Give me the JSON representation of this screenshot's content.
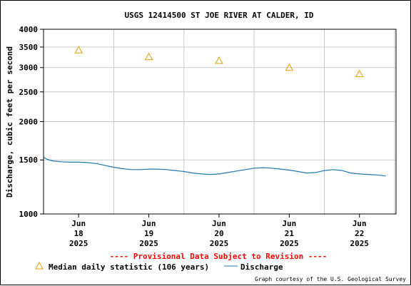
{
  "chart_data": {
    "type": "line",
    "title": "USGS 12414500 ST JOE RIVER AT CALDER, ID",
    "ylabel": "Discharge, cubic feet per second",
    "xlabel": "",
    "y_scale": "log",
    "ylim": [
      1000,
      4000
    ],
    "y_ticks": [
      1000,
      1500,
      2000,
      2500,
      3000,
      3500,
      4000
    ],
    "x_ticks": [
      {
        "value": "2025-06-18",
        "label": [
          "Jun",
          "18",
          "2025"
        ]
      },
      {
        "value": "2025-06-19",
        "label": [
          "Jun",
          "19",
          "2025"
        ]
      },
      {
        "value": "2025-06-20",
        "label": [
          "Jun",
          "20",
          "2025"
        ]
      },
      {
        "value": "2025-06-21",
        "label": [
          "Jun",
          "21",
          "2025"
        ]
      },
      {
        "value": "2025-06-22",
        "label": [
          "Jun",
          "22",
          "2025"
        ]
      }
    ],
    "xlim": [
      "2025-06-17 12:00",
      "2025-06-22 12:30"
    ],
    "grid": true,
    "series": [
      {
        "name": "Median daily statistic (106 years)",
        "type": "scatter",
        "marker": "triangle",
        "color": "#e69f00",
        "x": [
          "2025-06-18 00:00",
          "2025-06-19 00:00",
          "2025-06-20 00:00",
          "2025-06-21 00:00",
          "2025-06-22 00:00"
        ],
        "y": [
          3420,
          3250,
          3160,
          3000,
          2860
        ]
      },
      {
        "name": "Discharge",
        "type": "line",
        "color": "#1f77b4",
        "x": [
          "2025-06-17 12:00",
          "2025-06-17 13:00",
          "2025-06-17 15:00",
          "2025-06-17 18:00",
          "2025-06-17 21:00",
          "2025-06-18 00:00",
          "2025-06-18 03:00",
          "2025-06-18 06:00",
          "2025-06-18 09:00",
          "2025-06-18 12:00",
          "2025-06-18 15:00",
          "2025-06-18 18:00",
          "2025-06-18 21:00",
          "2025-06-19 00:00",
          "2025-06-19 03:00",
          "2025-06-19 06:00",
          "2025-06-19 09:00",
          "2025-06-19 12:00",
          "2025-06-19 15:00",
          "2025-06-19 18:00",
          "2025-06-19 21:00",
          "2025-06-20 00:00",
          "2025-06-20 03:00",
          "2025-06-20 06:00",
          "2025-06-20 09:00",
          "2025-06-20 12:00",
          "2025-06-20 15:00",
          "2025-06-20 18:00",
          "2025-06-20 21:00",
          "2025-06-21 00:00",
          "2025-06-21 03:00",
          "2025-06-21 06:00",
          "2025-06-21 09:00",
          "2025-06-21 12:00",
          "2025-06-21 15:00",
          "2025-06-21 18:00",
          "2025-06-21 21:00",
          "2025-06-22 00:00",
          "2025-06-22 03:00",
          "2025-06-22 06:00",
          "2025-06-22 09:00"
        ],
        "y": [
          1530,
          1510,
          1490,
          1480,
          1475,
          1475,
          1470,
          1460,
          1440,
          1420,
          1405,
          1395,
          1395,
          1400,
          1400,
          1395,
          1385,
          1375,
          1360,
          1350,
          1345,
          1350,
          1365,
          1380,
          1395,
          1410,
          1415,
          1410,
          1400,
          1390,
          1375,
          1360,
          1365,
          1385,
          1395,
          1385,
          1360,
          1350,
          1345,
          1340,
          1330
        ]
      }
    ],
    "legend": {
      "position": "bottom",
      "items": [
        {
          "label": "Median daily statistic (106 years)",
          "symbol": "triangle"
        },
        {
          "label": "Discharge",
          "symbol": "line"
        }
      ]
    },
    "annotations": {
      "provisional": "---- Provisional Data Subject to Revision ----",
      "credit": "Graph courtesy of the U.S. Geological Survey"
    },
    "colors": {
      "grid": "#c8c8c8",
      "provisional": "#ff0000",
      "median": "#e69f00",
      "discharge": "#1f77b4"
    }
  }
}
